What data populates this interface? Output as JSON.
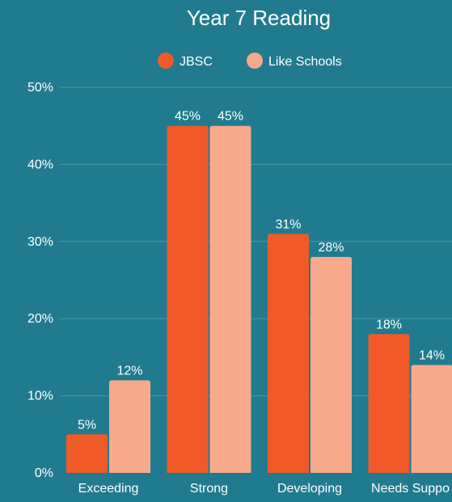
{
  "chart_data": {
    "type": "bar",
    "title": "Year 7 Reading",
    "categories": [
      "Exceeding",
      "Strong",
      "Developing",
      "Needs Suppo"
    ],
    "series": [
      {
        "name": "JBSC",
        "values": [
          5,
          45,
          31,
          18
        ],
        "labels": [
          "5%",
          "45%",
          "31%",
          "18%"
        ],
        "color": "#f05a28"
      },
      {
        "name": "Like Schools",
        "values": [
          12,
          45,
          28,
          14
        ],
        "labels": [
          "12%",
          "45%",
          "28%",
          "14%"
        ],
        "color": "#f7a98b"
      }
    ],
    "ylim": [
      0,
      50
    ],
    "yticks": [
      "0%",
      "10%",
      "20%",
      "30%",
      "40%",
      "50%"
    ],
    "ytick_values": [
      0,
      10,
      20,
      30,
      40,
      50
    ],
    "grid": true,
    "legend_position": "top-center",
    "colors": {
      "background": "#217b8e",
      "grid": "#4a98a8",
      "text": "#ffffff"
    }
  }
}
